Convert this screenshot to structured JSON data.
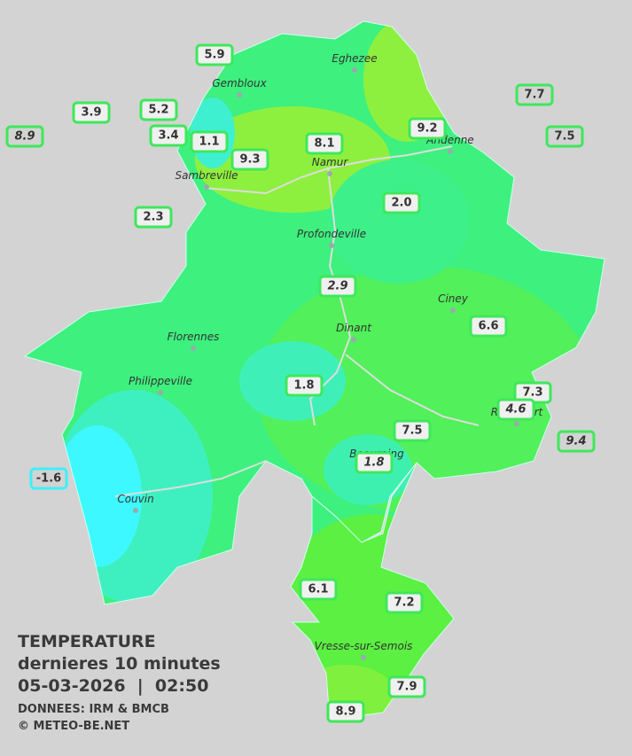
{
  "map": {
    "cities": [
      "Eghezee",
      "Gembloux",
      "Andenne",
      "Namur",
      "Sambreville",
      "Profondeville",
      "Ciney",
      "Dinant",
      "Florennes",
      "Philippeville",
      "Beauraing",
      "Rochefort",
      "Couvin",
      "Vresse-sur-Semois"
    ],
    "stations": [
      "5.9",
      "3.9",
      "5.2",
      "8.9",
      "3.4",
      "1.1",
      "9.3",
      "8.1",
      "9.2",
      "7.7",
      "7.5",
      "2.3",
      "2.0",
      "2.9",
      "6.6",
      "1.8",
      "7.5",
      "1.8",
      "7.3",
      "4.6",
      "9.4",
      "-1.6",
      "6.1",
      "7.2",
      "7.9",
      "8.9"
    ]
  },
  "legend": {
    "title": "TEMPERATURE",
    "subtitle": "dernieres 10 minutes",
    "datetime": "05-03-2026  |  02:50",
    "source": "DONNEES: IRM & BMCB",
    "copyright": "© METEO-BE.NET"
  }
}
